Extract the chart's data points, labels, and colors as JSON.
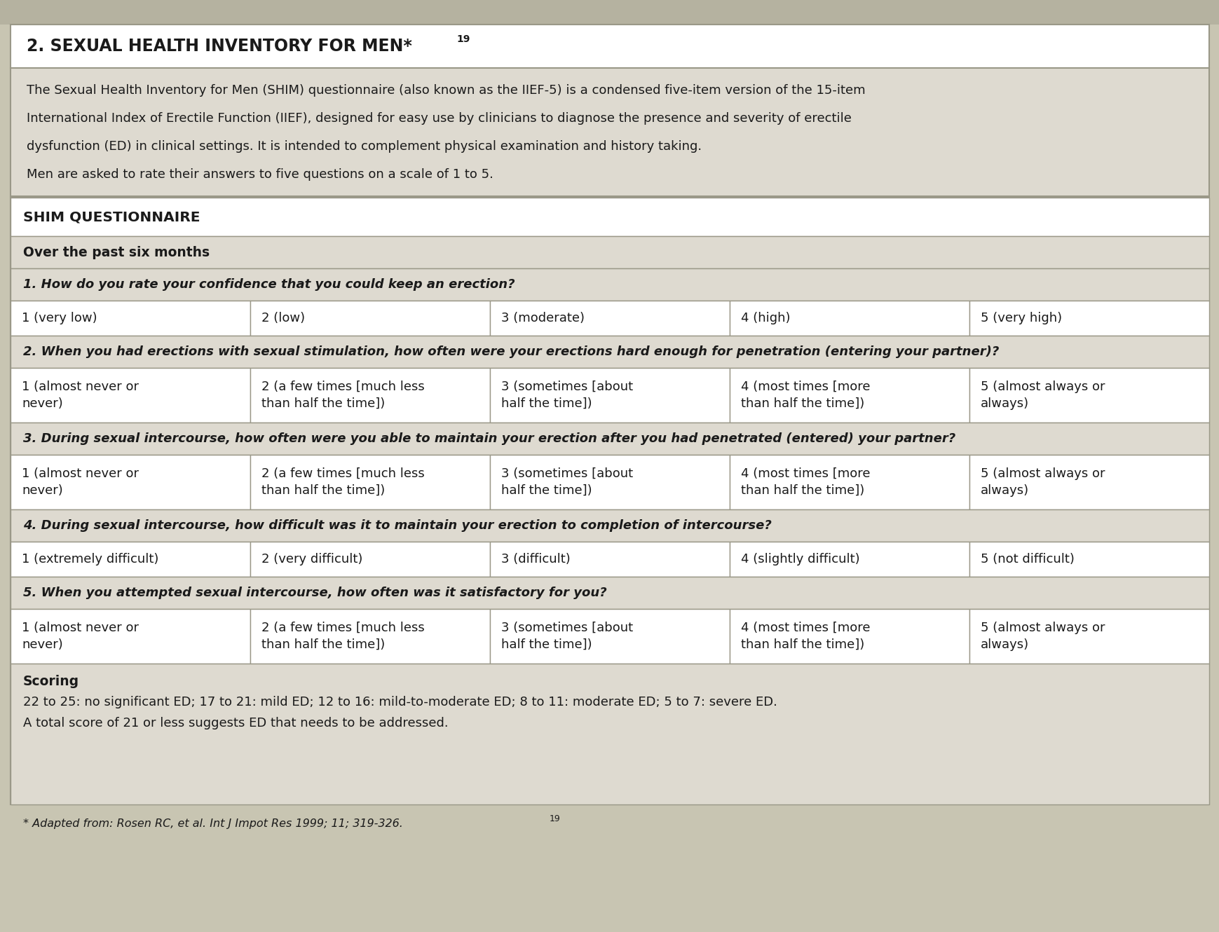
{
  "title_plain": "2. SEXUAL HEALTH INVENTORY FOR MEN*",
  "title_sup": "19",
  "bg_outer": "#c8c5b2",
  "bg_tan": "#dedad0",
  "bg_white": "#ffffff",
  "border_color": "#9a9888",
  "text_color": "#1a1a1a",
  "intro_lines": [
    "The Sexual Health Inventory for Men (SHIM) questionnaire (also known as the IIEF-5) is a condensed five-item version of the 15-item",
    "International Index of Erectile Function (IIEF), designed for easy use by clinicians to diagnose the presence and severity of erectile",
    "dysfunction (ED) in clinical settings. It is intended to complement physical examination and history taking.",
    "Men are asked to rate their answers to five questions on a scale of 1 to 5."
  ],
  "shim_header": "SHIM QUESTIONNAIRE",
  "subheader": "Over the past six months",
  "questions": [
    {
      "text": "1. How do you rate your confidence that you could keep an erection?",
      "answers": [
        "1 (very low)",
        "2 (low)",
        "3 (moderate)",
        "4 (high)",
        "5 (very high)"
      ],
      "multiline": false
    },
    {
      "text": "2. When you had erections with sexual stimulation, how often were your erections hard enough for penetration (entering your partner)?",
      "answers": [
        "1 (almost never or\nnever)",
        "2 (a few times [much less\nthan half the time])",
        "3 (sometimes [about\nhalf the time])",
        "4 (most times [more\nthan half the time])",
        "5 (almost always or\nalways)"
      ],
      "multiline": true
    },
    {
      "text": "3. During sexual intercourse, how often were you able to maintain your erection after you had penetrated (entered) your partner?",
      "answers": [
        "1 (almost never or\nnever)",
        "2 (a few times [much less\nthan half the time])",
        "3 (sometimes [about\nhalf the time])",
        "4 (most times [more\nthan half the time])",
        "5 (almost always or\nalways)"
      ],
      "multiline": true
    },
    {
      "text": "4. During sexual intercourse, how difficult was it to maintain your erection to completion of intercourse?",
      "answers": [
        "1 (extremely difficult)",
        "2 (very difficult)",
        "3 (difficult)",
        "4 (slightly difficult)",
        "5 (not difficult)"
      ],
      "multiline": false
    },
    {
      "text": "5. When you attempted sexual intercourse, how often was it satisfactory for you?",
      "answers": [
        "1 (almost never or\nnever)",
        "2 (a few times [much less\nthan half the time])",
        "3 (sometimes [about\nhalf the time])",
        "4 (most times [more\nthan half the time])",
        "5 (almost always or\nalways)"
      ],
      "multiline": true
    }
  ],
  "scoring_header": "Scoring",
  "scoring_lines": [
    "22 to 25: no significant ED; 17 to 21: mild ED; 12 to 16: mild-to-moderate ED; 8 to 11: moderate ED; 5 to 7: severe ED.",
    "A total score of 21 or less suggests ED that needs to be addressed."
  ],
  "footnote_plain": "* Adapted from: Rosen RC, et al. Int J Impot Res 1999; 11; 319-326.",
  "footnote_sup": "19"
}
